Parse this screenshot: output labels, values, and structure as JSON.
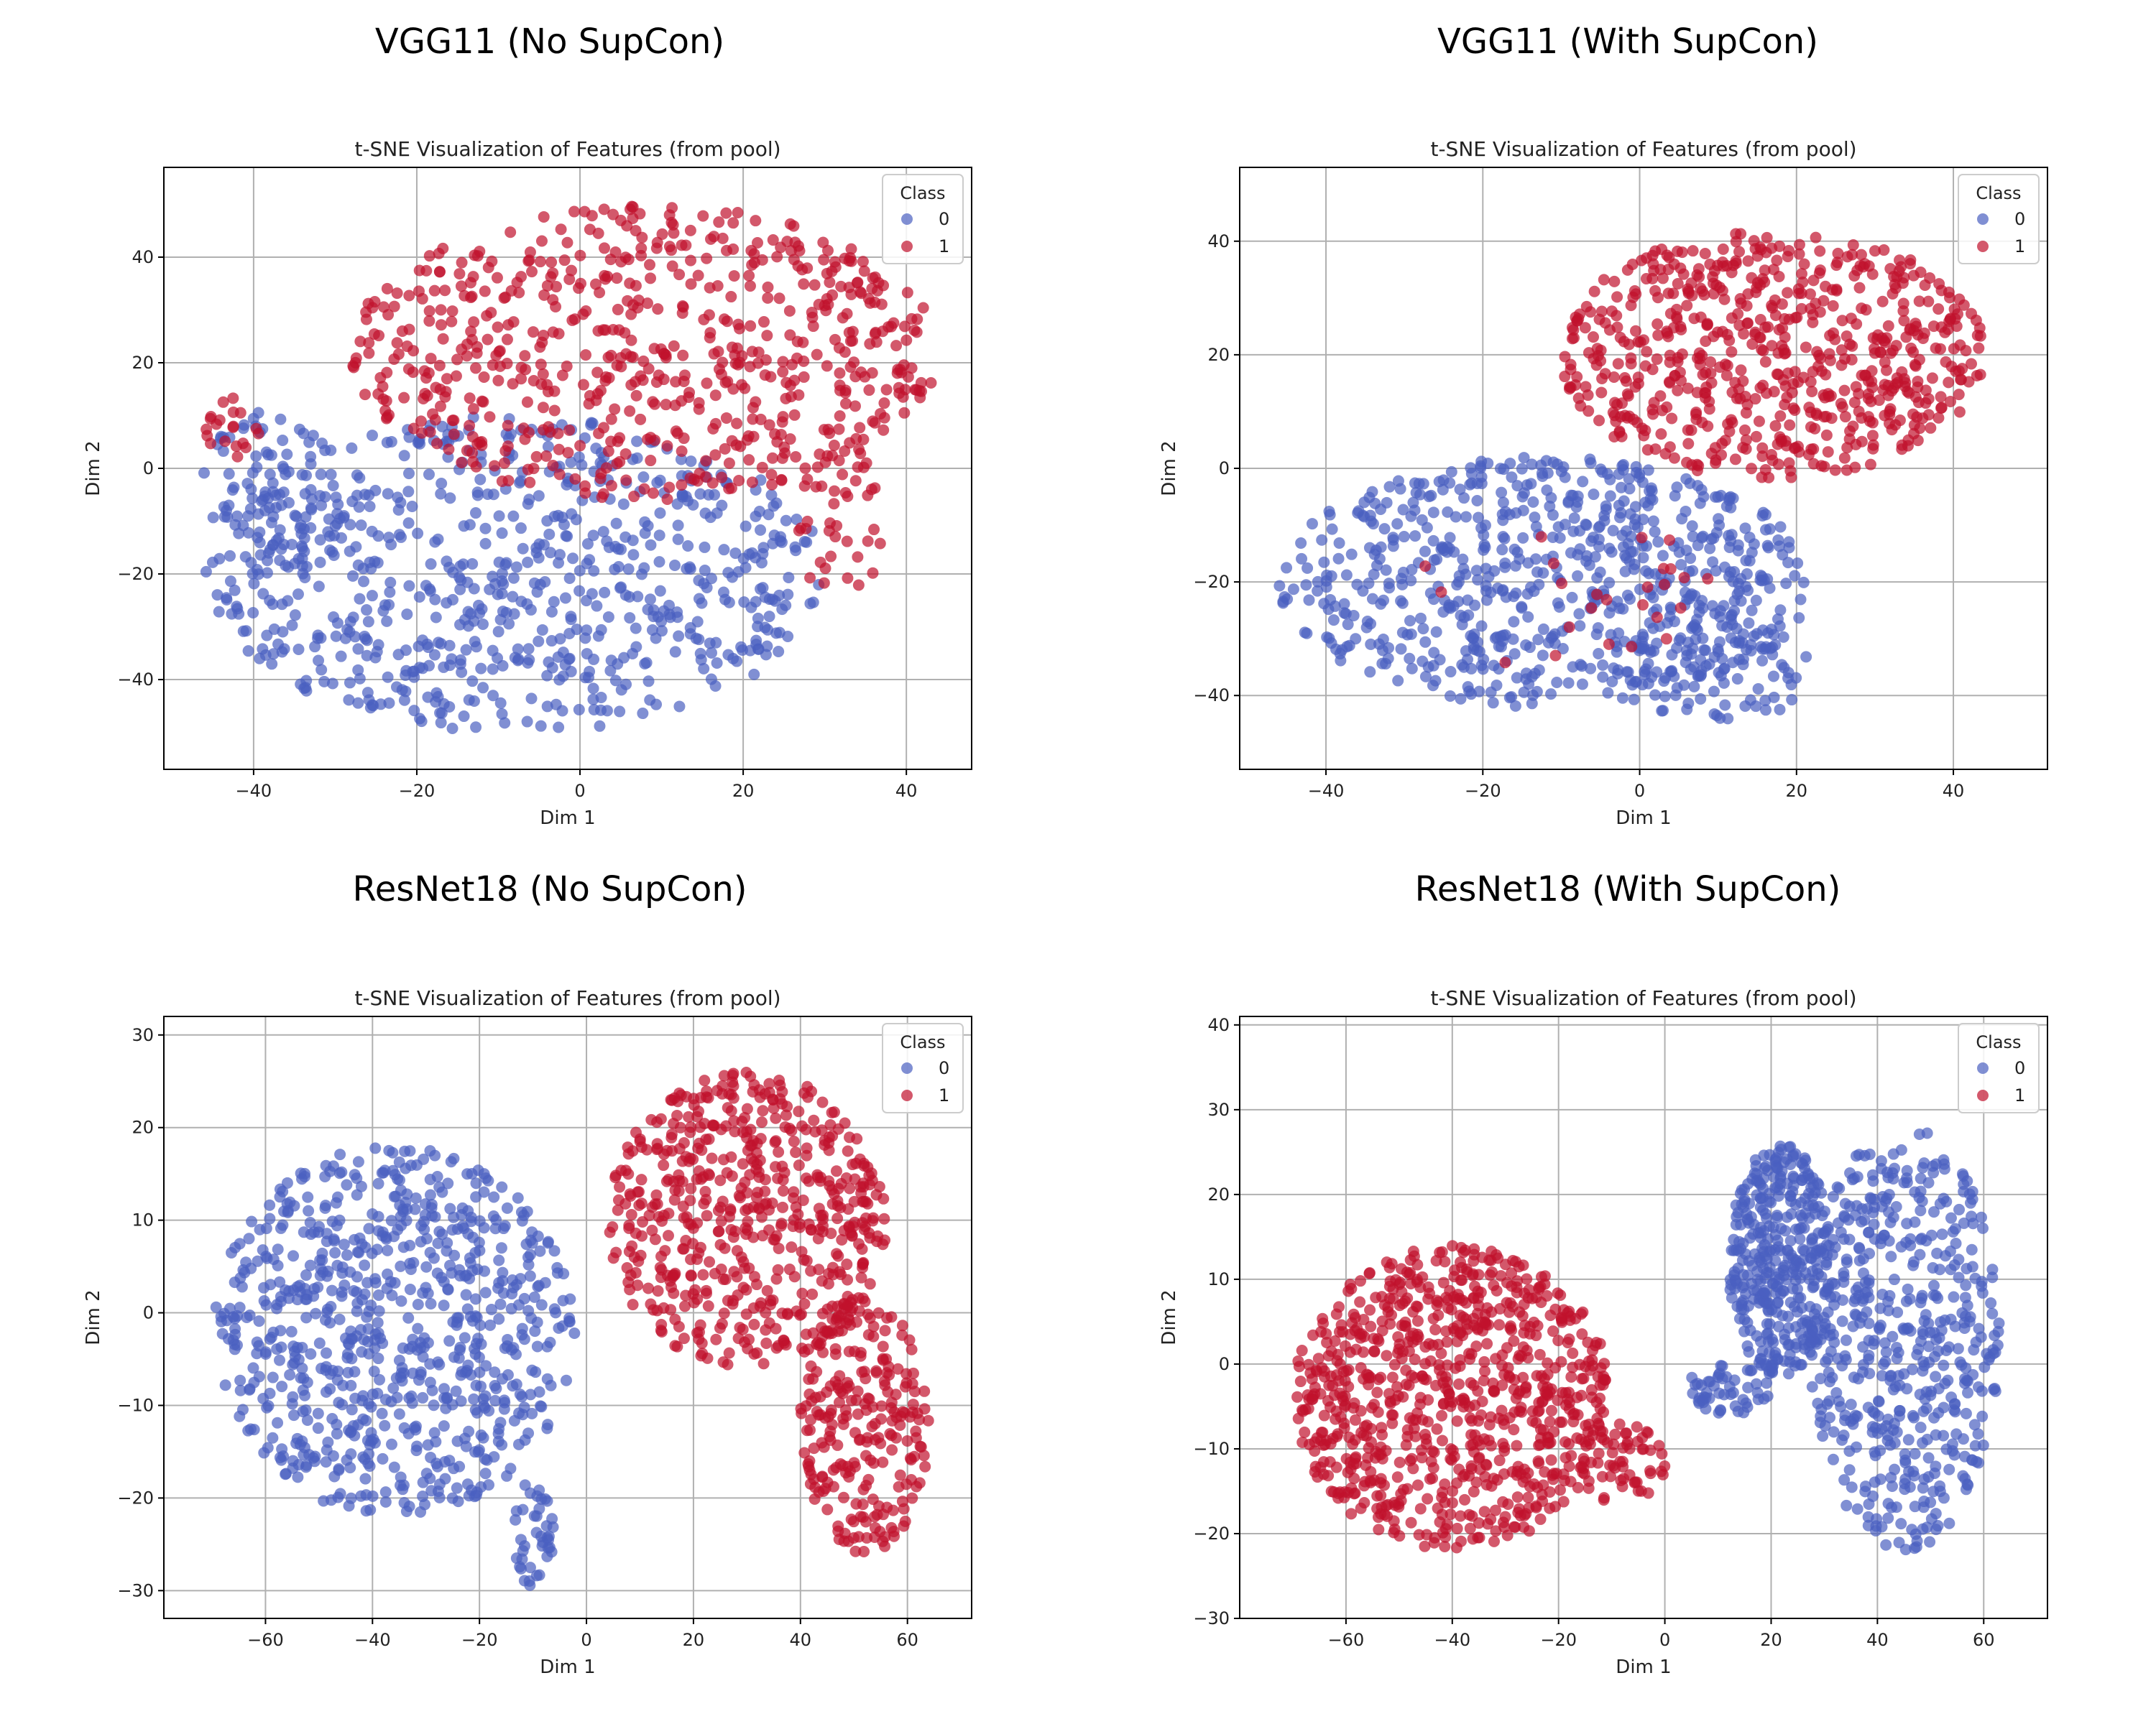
{
  "figure_titles": [
    "VGG11 (No SupCon)",
    "VGG11 (With SupCon)",
    "ResNet18 (No SupCon)",
    "ResNet18 (With SupCon)"
  ],
  "colors": {
    "class0": "#4a5fc1",
    "class1": "#c0112c",
    "grid": "#b0b0b0"
  },
  "chart_data": [
    {
      "type": "scatter",
      "title": "t-SNE Visualization of  Features (from pool)",
      "xlabel": "Dim 1",
      "ylabel": "Dim 2",
      "xlim": [
        -51,
        48
      ],
      "ylim": [
        -57,
        57
      ],
      "xticks": [
        -40,
        -20,
        0,
        20,
        40
      ],
      "yticks": [
        -40,
        -20,
        0,
        20,
        40
      ],
      "grid": true,
      "legend": {
        "title": "Class",
        "labels": [
          "0",
          "1"
        ],
        "placement": "top-right"
      },
      "clusters": [
        {
          "class": "0",
          "n": 700,
          "shape": "ellipse",
          "cx": -8,
          "cy": -20,
          "rx": 38,
          "ry": 30
        },
        {
          "class": "0",
          "n": 90,
          "shape": "ellipse",
          "cx": -38,
          "cy": -5,
          "rx": 9,
          "ry": 16
        },
        {
          "class": "1",
          "n": 650,
          "shape": "ellipse",
          "cx": 8,
          "cy": 22,
          "rx": 36,
          "ry": 28
        },
        {
          "class": "1",
          "n": 40,
          "shape": "ellipse",
          "cx": 32,
          "cy": -10,
          "rx": 6,
          "ry": 14
        },
        {
          "class": "1",
          "n": 20,
          "shape": "ellipse",
          "cx": -42,
          "cy": 8,
          "rx": 4,
          "ry": 6
        }
      ]
    },
    {
      "type": "scatter",
      "title": "t-SNE Visualization of  Features (from pool)",
      "xlabel": "Dim 1",
      "ylabel": "Dim 2",
      "xlim": [
        -51,
        52
      ],
      "ylim": [
        -53,
        53
      ],
      "xticks": [
        -40,
        -20,
        0,
        20,
        40
      ],
      "yticks": [
        -40,
        -20,
        0,
        20,
        40
      ],
      "grid": true,
      "legend": {
        "title": "Class",
        "labels": [
          "0",
          "1"
        ],
        "placement": "top-right"
      },
      "clusters": [
        {
          "class": "0",
          "n": 700,
          "shape": "ellipse",
          "cx": -12,
          "cy": -20,
          "rx": 34,
          "ry": 22
        },
        {
          "class": "0",
          "n": 90,
          "shape": "ellipse",
          "cx": 10,
          "cy": -35,
          "rx": 12,
          "ry": 10
        },
        {
          "class": "1",
          "n": 650,
          "shape": "ellipse",
          "cx": 17,
          "cy": 20,
          "rx": 27,
          "ry": 22
        },
        {
          "class": "1",
          "n": 25,
          "shape": "ellipse",
          "cx": -10,
          "cy": -22,
          "rx": 20,
          "ry": 15
        }
      ]
    },
    {
      "type": "scatter",
      "title": "t-SNE Visualization of  Features (from pool)",
      "xlabel": "Dim 1",
      "ylabel": "Dim 2",
      "xlim": [
        -79,
        72
      ],
      "ylim": [
        -33,
        32
      ],
      "xticks": [
        -60,
        -40,
        -20,
        0,
        20,
        40,
        60
      ],
      "yticks": [
        -30,
        -20,
        -10,
        0,
        10,
        20,
        30
      ],
      "grid": true,
      "legend": {
        "title": "Class",
        "labels": [
          "0",
          "1"
        ],
        "placement": "top-right"
      },
      "clusters": [
        {
          "class": "0",
          "n": 760,
          "shape": "ellipse",
          "cx": -36,
          "cy": -2,
          "rx": 34,
          "ry": 20
        },
        {
          "class": "0",
          "n": 40,
          "shape": "ellipse",
          "cx": -10,
          "cy": -24,
          "rx": 4,
          "ry": 6
        },
        {
          "class": "1",
          "n": 560,
          "shape": "ellipse",
          "cx": 30,
          "cy": 10,
          "rx": 26,
          "ry": 16
        },
        {
          "class": "1",
          "n": 240,
          "shape": "ellipse",
          "cx": 52,
          "cy": -12,
          "rx": 12,
          "ry": 14
        }
      ]
    },
    {
      "type": "scatter",
      "title": "t-SNE Visualization of  Features (from pool)",
      "xlabel": "Dim 1",
      "ylabel": "Dim 2",
      "xlim": [
        -80,
        72
      ],
      "ylim": [
        -30,
        41
      ],
      "xticks": [
        -60,
        -40,
        -20,
        0,
        20,
        40,
        60
      ],
      "yticks": [
        -30,
        -20,
        -10,
        0,
        10,
        20,
        30,
        40
      ],
      "grid": true,
      "legend": {
        "title": "Class",
        "labels": [
          "0",
          "1"
        ],
        "placement": "top-right"
      },
      "clusters": [
        {
          "class": "1",
          "n": 820,
          "shape": "ellipse",
          "cx": -40,
          "cy": -4,
          "rx": 30,
          "ry": 18
        },
        {
          "class": "1",
          "n": 60,
          "shape": "ellipse",
          "cx": -8,
          "cy": -12,
          "rx": 8,
          "ry": 5
        },
        {
          "class": "0",
          "n": 380,
          "shape": "ellipse",
          "cx": 22,
          "cy": 12,
          "rx": 10,
          "ry": 14
        },
        {
          "class": "0",
          "n": 500,
          "shape": "ellipse",
          "cx": 45,
          "cy": 3,
          "rx": 18,
          "ry": 25
        },
        {
          "class": "0",
          "n": 50,
          "shape": "ellipse",
          "cx": 12,
          "cy": -3,
          "rx": 8,
          "ry": 3
        }
      ]
    }
  ]
}
